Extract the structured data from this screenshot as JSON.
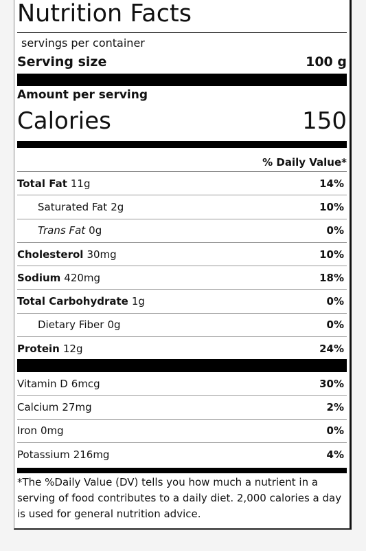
{
  "title": "Nutrition Facts",
  "servings_per_container": "servings per container",
  "serving_size": {
    "label": "Serving size",
    "value": "100 g"
  },
  "amount_per_serving": "Amount per serving",
  "calories": {
    "label": "Calories",
    "value": "150"
  },
  "daily_value_header": "% Daily Value*",
  "nutrients": [
    {
      "name": "Total Fat",
      "amount": "11g",
      "dv": "14%"
    },
    {
      "name": "Saturated Fat",
      "amount": "2g",
      "dv": "10%"
    },
    {
      "name": "Trans Fat",
      "amount": "0g",
      "dv": "0%"
    },
    {
      "name": "Cholesterol",
      "amount": "30mg",
      "dv": "10%"
    },
    {
      "name": "Sodium",
      "amount": "420mg",
      "dv": "18%"
    },
    {
      "name": "Total Carbohydrate",
      "amount": "1g",
      "dv": "0%"
    },
    {
      "name": "Dietary Fiber",
      "amount": "0g",
      "dv": "0%"
    },
    {
      "name": "Protein",
      "amount": "12g",
      "dv": "24%"
    }
  ],
  "vitamins": [
    {
      "name": "Vitamin D",
      "amount": "6mcg",
      "dv": "30%"
    },
    {
      "name": "Calcium",
      "amount": "27mg",
      "dv": "2%"
    },
    {
      "name": "Iron",
      "amount": "0mg",
      "dv": "0%"
    },
    {
      "name": "Potassium",
      "amount": "216mg",
      "dv": "4%"
    }
  ],
  "footnote": "*The %Daily Value (DV) tells you how much a nutrient in a serving of food contributes to a daily diet. 2,000 calories a day is used for general nutrition advice."
}
